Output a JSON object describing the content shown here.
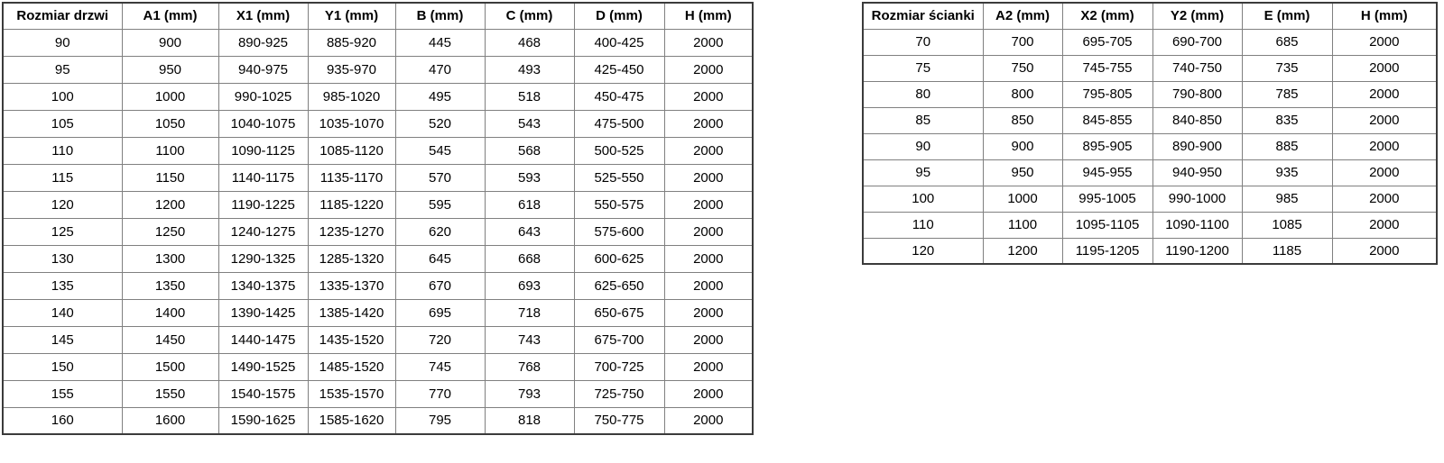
{
  "door_table": {
    "headers": [
      "Rozmiar drzwi",
      "A1 (mm)",
      "X1 (mm)",
      "Y1 (mm)",
      "B (mm)",
      "C (mm)",
      "D (mm)",
      "H (mm)"
    ],
    "rows": [
      [
        "90",
        "900",
        "890-925",
        "885-920",
        "445",
        "468",
        "400-425",
        "2000"
      ],
      [
        "95",
        "950",
        "940-975",
        "935-970",
        "470",
        "493",
        "425-450",
        "2000"
      ],
      [
        "100",
        "1000",
        "990-1025",
        "985-1020",
        "495",
        "518",
        "450-475",
        "2000"
      ],
      [
        "105",
        "1050",
        "1040-1075",
        "1035-1070",
        "520",
        "543",
        "475-500",
        "2000"
      ],
      [
        "110",
        "1100",
        "1090-1125",
        "1085-1120",
        "545",
        "568",
        "500-525",
        "2000"
      ],
      [
        "115",
        "1150",
        "1140-1175",
        "1135-1170",
        "570",
        "593",
        "525-550",
        "2000"
      ],
      [
        "120",
        "1200",
        "1190-1225",
        "1185-1220",
        "595",
        "618",
        "550-575",
        "2000"
      ],
      [
        "125",
        "1250",
        "1240-1275",
        "1235-1270",
        "620",
        "643",
        "575-600",
        "2000"
      ],
      [
        "130",
        "1300",
        "1290-1325",
        "1285-1320",
        "645",
        "668",
        "600-625",
        "2000"
      ],
      [
        "135",
        "1350",
        "1340-1375",
        "1335-1370",
        "670",
        "693",
        "625-650",
        "2000"
      ],
      [
        "140",
        "1400",
        "1390-1425",
        "1385-1420",
        "695",
        "718",
        "650-675",
        "2000"
      ],
      [
        "145",
        "1450",
        "1440-1475",
        "1435-1520",
        "720",
        "743",
        "675-700",
        "2000"
      ],
      [
        "150",
        "1500",
        "1490-1525",
        "1485-1520",
        "745",
        "768",
        "700-725",
        "2000"
      ],
      [
        "155",
        "1550",
        "1540-1575",
        "1535-1570",
        "770",
        "793",
        "725-750",
        "2000"
      ],
      [
        "160",
        "1600",
        "1590-1625",
        "1585-1620",
        "795",
        "818",
        "750-775",
        "2000"
      ]
    ]
  },
  "wall_table": {
    "headers": [
      "Rozmiar ścianki",
      "A2 (mm)",
      "X2 (mm)",
      "Y2 (mm)",
      "E (mm)",
      "H (mm)"
    ],
    "rows": [
      [
        "70",
        "700",
        "695-705",
        "690-700",
        "685",
        "2000"
      ],
      [
        "75",
        "750",
        "745-755",
        "740-750",
        "735",
        "2000"
      ],
      [
        "80",
        "800",
        "795-805",
        "790-800",
        "785",
        "2000"
      ],
      [
        "85",
        "850",
        "845-855",
        "840-850",
        "835",
        "2000"
      ],
      [
        "90",
        "900",
        "895-905",
        "890-900",
        "885",
        "2000"
      ],
      [
        "95",
        "950",
        "945-955",
        "940-950",
        "935",
        "2000"
      ],
      [
        "100",
        "1000",
        "995-1005",
        "990-1000",
        "985",
        "2000"
      ],
      [
        "110",
        "1100",
        "1095-1105",
        "1090-1100",
        "1085",
        "2000"
      ],
      [
        "120",
        "1200",
        "1195-1205",
        "1190-1200",
        "1185",
        "2000"
      ]
    ]
  },
  "colors": {
    "background": "#ffffff",
    "text": "#000000",
    "border_outer": "#3b3b3b",
    "border_inner": "#808080"
  }
}
